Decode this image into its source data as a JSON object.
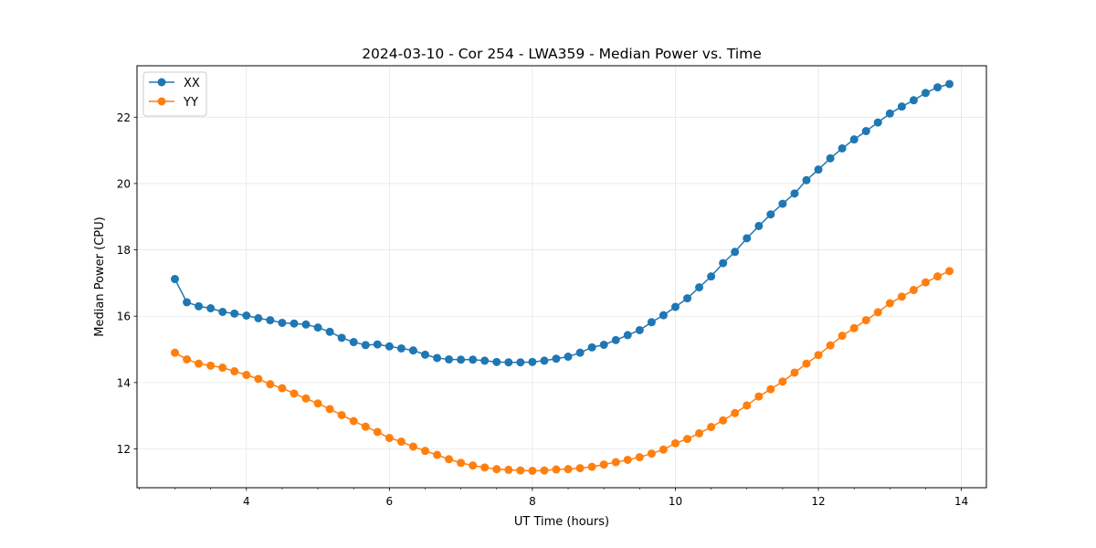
{
  "chart_data": {
    "type": "line",
    "title": "2024-03-10 - Cor 254 - LWA359 - Median Power vs. Time",
    "xlabel": "UT Time (hours)",
    "ylabel": "Median Power (CPU)",
    "xlim": [
      2.47,
      14.35
    ],
    "ylim": [
      10.83,
      23.55
    ],
    "xticks": [
      4,
      6,
      8,
      10,
      12,
      14
    ],
    "xtick_labels": [
      "4",
      "6",
      "8",
      "10",
      "12",
      "14"
    ],
    "x_minor_step": 0.5,
    "yticks": [
      12,
      14,
      16,
      18,
      20,
      22
    ],
    "ytick_labels": [
      "12",
      "14",
      "16",
      "18",
      "20",
      "22"
    ],
    "grid": true,
    "legend_position": "top-left",
    "x": [
      3.0,
      3.167,
      3.333,
      3.5,
      3.667,
      3.833,
      4.0,
      4.167,
      4.333,
      4.5,
      4.667,
      4.833,
      5.0,
      5.167,
      5.333,
      5.5,
      5.667,
      5.833,
      6.0,
      6.167,
      6.333,
      6.5,
      6.667,
      6.833,
      7.0,
      7.167,
      7.333,
      7.5,
      7.667,
      7.833,
      8.0,
      8.167,
      8.333,
      8.5,
      8.667,
      8.833,
      9.0,
      9.167,
      9.333,
      9.5,
      9.667,
      9.833,
      10.0,
      10.167,
      10.333,
      10.5,
      10.667,
      10.833,
      11.0,
      11.167,
      11.333,
      11.5,
      11.667,
      11.833,
      12.0,
      12.167,
      12.333,
      12.5,
      12.667,
      12.833,
      13.0,
      13.167,
      13.333,
      13.5,
      13.667,
      13.833
    ],
    "series": [
      {
        "name": "XX",
        "color": "#1f77b4",
        "values": [
          17.12,
          16.42,
          16.3,
          16.24,
          16.13,
          16.08,
          16.02,
          15.94,
          15.88,
          15.8,
          15.78,
          15.75,
          15.66,
          15.53,
          15.35,
          15.22,
          15.13,
          15.15,
          15.09,
          15.03,
          14.97,
          14.84,
          14.74,
          14.7,
          14.69,
          14.69,
          14.66,
          14.62,
          14.61,
          14.61,
          14.62,
          14.66,
          14.72,
          14.78,
          14.9,
          15.06,
          15.14,
          15.28,
          15.43,
          15.58,
          15.82,
          16.03,
          16.28,
          16.54,
          16.87,
          17.2,
          17.6,
          17.94,
          18.35,
          18.72,
          19.07,
          19.39,
          19.7,
          20.1,
          20.42,
          20.76,
          21.06,
          21.33,
          21.58,
          21.84,
          22.11,
          22.32,
          22.51,
          22.73,
          22.9,
          23.0
        ]
      },
      {
        "name": "YY",
        "color": "#ff7f0e",
        "values": [
          14.9,
          14.7,
          14.57,
          14.51,
          14.45,
          14.34,
          14.23,
          14.11,
          13.95,
          13.83,
          13.67,
          13.52,
          13.37,
          13.2,
          13.02,
          12.84,
          12.67,
          12.51,
          12.33,
          12.22,
          12.07,
          11.94,
          11.82,
          11.69,
          11.58,
          11.5,
          11.44,
          11.39,
          11.37,
          11.35,
          11.34,
          11.35,
          11.38,
          11.39,
          11.42,
          11.46,
          11.53,
          11.6,
          11.67,
          11.75,
          11.86,
          11.98,
          12.17,
          12.3,
          12.47,
          12.66,
          12.86,
          13.08,
          13.31,
          13.58,
          13.8,
          14.03,
          14.3,
          14.57,
          14.83,
          15.12,
          15.41,
          15.64,
          15.88,
          16.12,
          16.39,
          16.59,
          16.79,
          17.02,
          17.2,
          17.36
        ]
      }
    ]
  }
}
